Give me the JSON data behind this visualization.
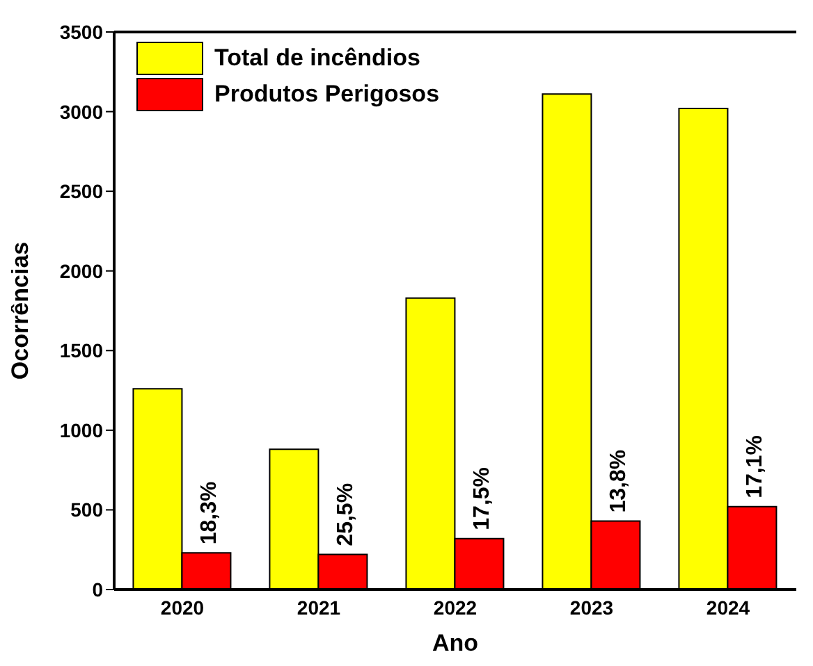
{
  "chart_data": {
    "type": "bar",
    "xlabel": "Ano",
    "ylabel": "Ocorrências",
    "categories": [
      "2020",
      "2021",
      "2022",
      "2023",
      "2024"
    ],
    "series": [
      {
        "name": "Total de incêndios",
        "color": "#ffff00",
        "values": [
          1260,
          880,
          1830,
          3110,
          3020
        ]
      },
      {
        "name": "Produtos Perigosos",
        "color": "#ff0000",
        "values": [
          230,
          220,
          320,
          430,
          520
        ]
      }
    ],
    "annotations": [
      {
        "text": "18,3%",
        "x": "2020",
        "y": 230
      },
      {
        "text": "25,5%",
        "x": "2021",
        "y": 220
      },
      {
        "text": "17,5%",
        "x": "2022",
        "y": 320
      },
      {
        "text": "13,8%",
        "x": "2023",
        "y": 430
      },
      {
        "text": "17,1%",
        "x": "2024",
        "y": 520
      }
    ],
    "ylim": [
      0,
      3500
    ],
    "yticks": [
      0,
      500,
      1000,
      1500,
      2000,
      2500,
      3000,
      3500
    ],
    "grid": false,
    "legend": "top left"
  }
}
